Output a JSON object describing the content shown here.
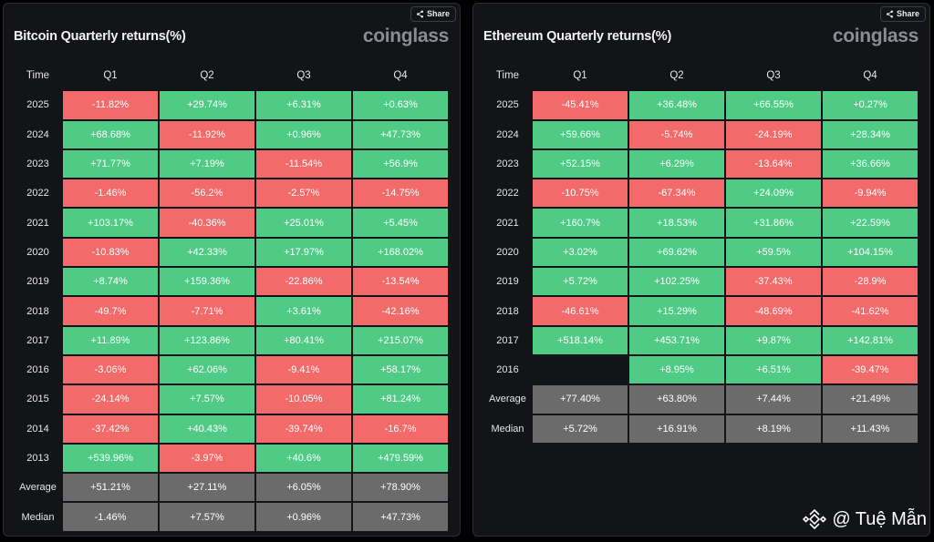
{
  "panels": [
    {
      "title": "Bitcoin Quarterly returns(%)",
      "brand": "coinglass",
      "share_label": "Share",
      "headers": [
        "Time",
        "Q1",
        "Q2",
        "Q3",
        "Q4"
      ],
      "rows": [
        {
          "label": "2025",
          "kind": "data",
          "values": [
            "-11.82%",
            "+29.74%",
            "+6.31%",
            "+0.63%"
          ]
        },
        {
          "label": "2024",
          "kind": "data",
          "values": [
            "+68.68%",
            "-11.92%",
            "+0.96%",
            "+47.73%"
          ]
        },
        {
          "label": "2023",
          "kind": "data",
          "values": [
            "+71.77%",
            "+7.19%",
            "-11.54%",
            "+56.9%"
          ]
        },
        {
          "label": "2022",
          "kind": "data",
          "values": [
            "-1.46%",
            "-56.2%",
            "-2.57%",
            "-14.75%"
          ]
        },
        {
          "label": "2021",
          "kind": "data",
          "values": [
            "+103.17%",
            "-40.36%",
            "+25.01%",
            "+5.45%"
          ]
        },
        {
          "label": "2020",
          "kind": "data",
          "values": [
            "-10.83%",
            "+42.33%",
            "+17.97%",
            "+168.02%"
          ]
        },
        {
          "label": "2019",
          "kind": "data",
          "values": [
            "+8.74%",
            "+159.36%",
            "-22.86%",
            "-13.54%"
          ]
        },
        {
          "label": "2018",
          "kind": "data",
          "values": [
            "-49.7%",
            "-7.71%",
            "+3.61%",
            "-42.16%"
          ]
        },
        {
          "label": "2017",
          "kind": "data",
          "values": [
            "+11.89%",
            "+123.86%",
            "+80.41%",
            "+215.07%"
          ]
        },
        {
          "label": "2016",
          "kind": "data",
          "values": [
            "-3.06%",
            "+62.06%",
            "-9.41%",
            "+58.17%"
          ]
        },
        {
          "label": "2015",
          "kind": "data",
          "values": [
            "-24.14%",
            "+7.57%",
            "-10.05%",
            "+81.24%"
          ]
        },
        {
          "label": "2014",
          "kind": "data",
          "values": [
            "-37.42%",
            "+40.43%",
            "-39.74%",
            "-16.7%"
          ]
        },
        {
          "label": "2013",
          "kind": "data",
          "values": [
            "+539.96%",
            "-3.97%",
            "+40.6%",
            "+479.59%"
          ]
        },
        {
          "label": "Average",
          "kind": "stat",
          "values": [
            "+51.21%",
            "+27.11%",
            "+6.05%",
            "+78.90%"
          ]
        },
        {
          "label": "Median",
          "kind": "stat",
          "values": [
            "-1.46%",
            "+7.57%",
            "+0.96%",
            "+47.73%"
          ]
        }
      ]
    },
    {
      "title": "Ethereum Quarterly returns(%)",
      "brand": "coinglass",
      "share_label": "Share",
      "headers": [
        "Time",
        "Q1",
        "Q2",
        "Q3",
        "Q4"
      ],
      "rows": [
        {
          "label": "2025",
          "kind": "data",
          "values": [
            "-45.41%",
            "+36.48%",
            "+66.55%",
            "+0.27%"
          ]
        },
        {
          "label": "2024",
          "kind": "data",
          "values": [
            "+59.66%",
            "-5.74%",
            "-24.19%",
            "+28.34%"
          ]
        },
        {
          "label": "2023",
          "kind": "data",
          "values": [
            "+52.15%",
            "+6.29%",
            "-13.64%",
            "+36.66%"
          ]
        },
        {
          "label": "2022",
          "kind": "data",
          "values": [
            "-10.75%",
            "-67.34%",
            "+24.09%",
            "-9.94%"
          ]
        },
        {
          "label": "2021",
          "kind": "data",
          "values": [
            "+160.7%",
            "+18.53%",
            "+31.86%",
            "+22.59%"
          ]
        },
        {
          "label": "2020",
          "kind": "data",
          "values": [
            "+3.02%",
            "+69.62%",
            "+59.5%",
            "+104.15%"
          ]
        },
        {
          "label": "2019",
          "kind": "data",
          "values": [
            "+5.72%",
            "+102.25%",
            "-37.43%",
            "-28.9%"
          ]
        },
        {
          "label": "2018",
          "kind": "data",
          "values": [
            "-46.61%",
            "+15.29%",
            "-48.69%",
            "-41.62%"
          ]
        },
        {
          "label": "2017",
          "kind": "data",
          "values": [
            "+518.14%",
            "+453.71%",
            "+9.87%",
            "+142.81%"
          ]
        },
        {
          "label": "2016",
          "kind": "data",
          "values": [
            "",
            "+8.95%",
            "+6.51%",
            "-39.47%"
          ]
        },
        {
          "label": "Average",
          "kind": "stat",
          "values": [
            "+77.40%",
            "+63.80%",
            "+7.44%",
            "+21.49%"
          ]
        },
        {
          "label": "Median",
          "kind": "stat",
          "values": [
            "+5.72%",
            "+16.91%",
            "+8.19%",
            "+11.43%"
          ]
        }
      ]
    }
  ],
  "watermark": {
    "text": "@ Tuệ Mẫn",
    "icon": "binance-icon"
  },
  "colors": {
    "positive": "#4fcb86",
    "negative": "#f36a6a",
    "stat": "#6b6b6b",
    "panel_bg": "#121418"
  }
}
